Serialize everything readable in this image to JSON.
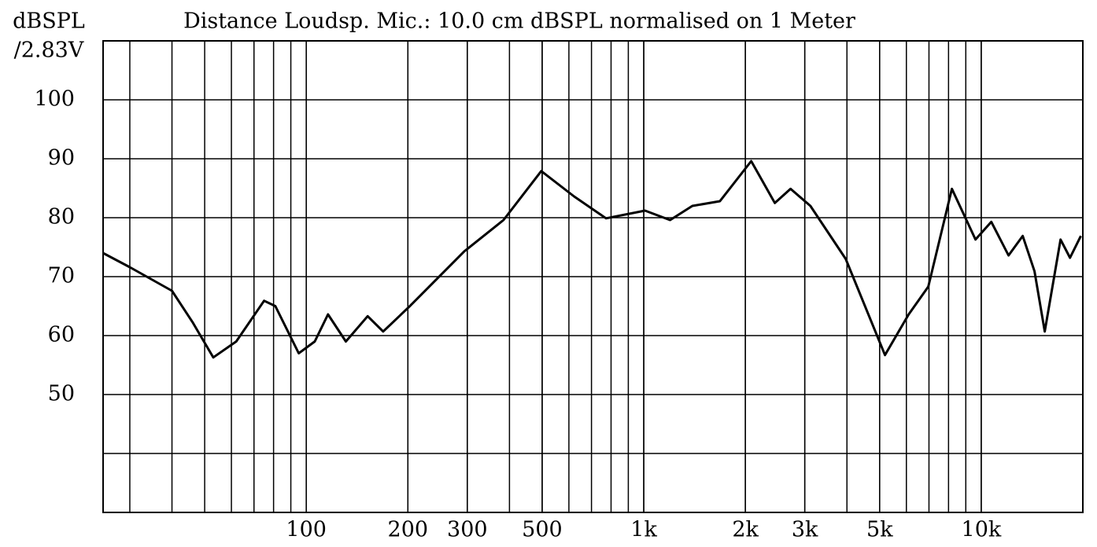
{
  "chart_data": {
    "type": "line",
    "title": "Distance Loudsp. Mic.: 10.0 cm dBSPL normalised on 1 Meter",
    "ylabel": [
      "dBSPL",
      "/2.83V"
    ],
    "xscale": "log",
    "xlim": [
      25,
      20000
    ],
    "ylim": [
      30,
      110
    ],
    "xticks": [
      100,
      200,
      300,
      500,
      {
        "value": 1000,
        "label": "1k"
      },
      {
        "value": 2000,
        "label": "2k"
      },
      {
        "value": 3000,
        "label": "3k"
      },
      {
        "value": 5000,
        "label": "5k"
      },
      {
        "value": 10000,
        "label": "10k"
      }
    ],
    "yticks": [
      50,
      60,
      70,
      80,
      90,
      100
    ],
    "grid": true,
    "x": [
      25,
      30,
      40,
      46,
      53,
      62,
      75,
      81,
      95,
      106,
      116,
      131,
      152,
      169,
      202,
      294,
      384,
      497,
      622,
      773,
      1009,
      1197,
      1393,
      1681,
      2082,
      2446,
      2722,
      3117,
      3966,
      5186,
      6096,
      6967,
      8185,
      9615,
      10713,
      12050,
      13270,
      14385,
      15422,
      17180,
      18320,
      19730
    ],
    "series": [
      {
        "color": "#000000",
        "values": [
          74,
          71.6,
          67.6,
          62.3,
          56.3,
          59,
          65.9,
          65,
          57,
          59,
          63.6,
          59,
          63.3,
          60.7,
          64.9,
          74.3,
          79.6,
          87.9,
          83.6,
          79.9,
          81.2,
          79.6,
          82,
          82.8,
          89.6,
          82.5,
          84.9,
          82,
          73,
          56.7,
          63.6,
          68.3,
          84.9,
          76.3,
          79.3,
          73.6,
          76.9,
          70.9,
          60.7,
          76.3,
          73.2,
          76.9
        ]
      }
    ]
  }
}
